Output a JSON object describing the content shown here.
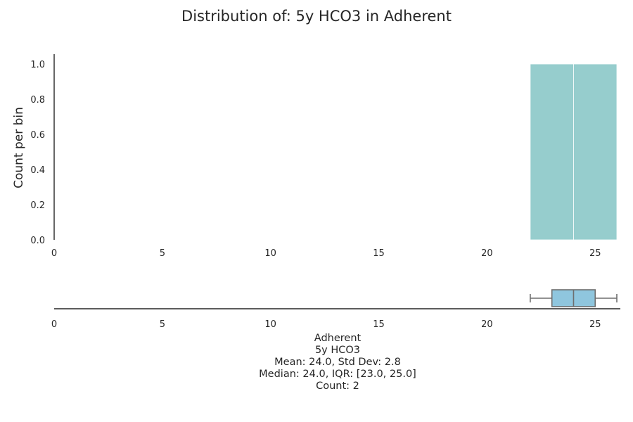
{
  "chart_data": [
    {
      "type": "histogram",
      "title": "Distribution of: 5y HCO3 in Adherent",
      "xlabel": "",
      "ylabel": "Count per bin",
      "xlim": [
        0,
        26.2
      ],
      "ylim": [
        0,
        1.05
      ],
      "x_ticks": [
        "0",
        "5",
        "10",
        "15",
        "20",
        "25"
      ],
      "y_ticks": [
        "0.0",
        "0.2",
        "0.4",
        "0.6",
        "0.8",
        "1.0"
      ],
      "bins": [
        {
          "x0": 22,
          "x1": 24,
          "count": 1
        },
        {
          "x0": 24,
          "x1": 26,
          "count": 1
        }
      ],
      "bar_color": "#96cdcd"
    },
    {
      "type": "boxplot",
      "xlim": [
        0,
        26.2
      ],
      "x_ticks": [
        "0",
        "5",
        "10",
        "15",
        "20",
        "25"
      ],
      "whisker_low": 22,
      "q1": 23,
      "median": 24,
      "q3": 25,
      "whisker_high": 26,
      "box_color": "#8fc6de",
      "stats_lines": [
        "Adherent",
        "5y HCO3",
        "Mean: 24.0, Std Dev: 2.8",
        "Median: 24.0, IQR: [23.0, 25.0]",
        "Count: 2"
      ]
    }
  ]
}
